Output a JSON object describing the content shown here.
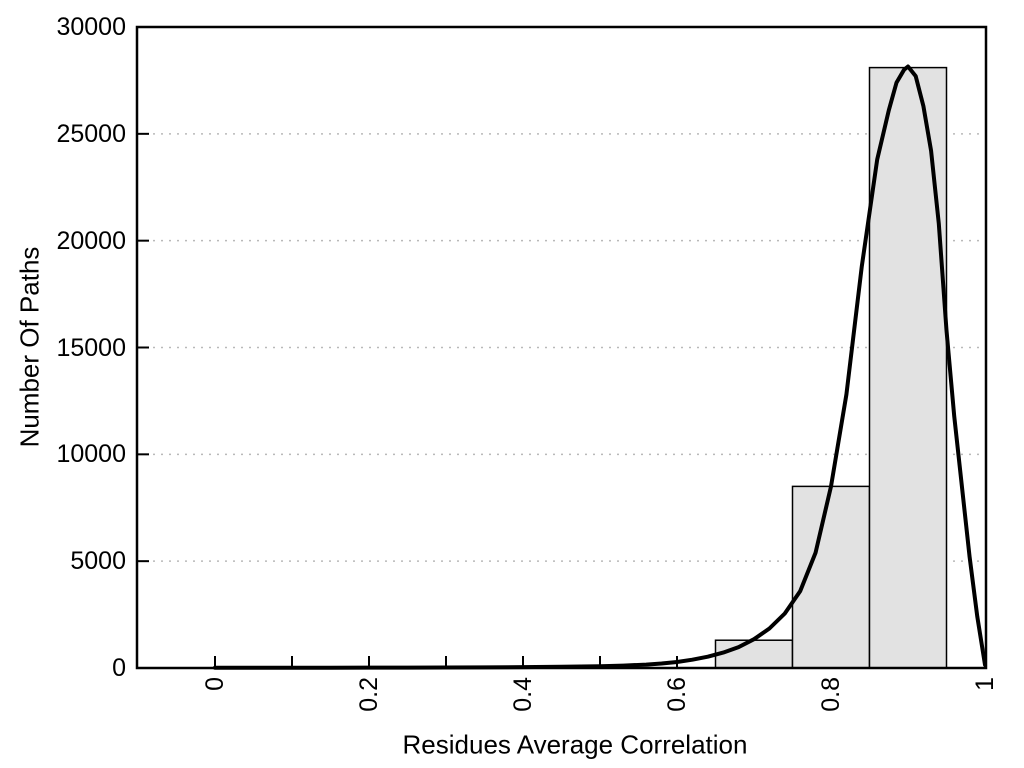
{
  "chart_data": {
    "type": "bar",
    "subtype": "histogram-with-density-curve",
    "title": "",
    "xlabel": "Residues Average Correlation",
    "ylabel": "Number Of Paths",
    "xlim": [
      -0.1,
      1.0
    ],
    "ylim": [
      0,
      30000
    ],
    "grid": "horizontal-dotted",
    "legend": "none",
    "x_ticks": [
      0,
      0.1,
      0.2,
      0.3,
      0.4,
      0.5,
      0.6,
      0.7,
      0.8,
      0.9,
      1.0
    ],
    "x_tick_labels": [
      "0",
      "",
      "0.2",
      "",
      "0.4",
      "",
      "0.6",
      "",
      "0.8",
      "",
      "1"
    ],
    "y_ticks": [
      0,
      5000,
      10000,
      15000,
      20000,
      25000,
      30000
    ],
    "y_tick_labels": [
      "0",
      "5000",
      "10000",
      "15000",
      "20000",
      "25000",
      "30000"
    ],
    "bar_fill": "#e2e2e2",
    "bars": [
      {
        "x0": 0.65,
        "x1": 0.75,
        "count": 1300
      },
      {
        "x0": 0.75,
        "x1": 0.85,
        "count": 8500
      },
      {
        "x0": 0.85,
        "x1": 0.95,
        "count": 28100
      }
    ],
    "curve": {
      "name": "density-fit",
      "color": "#000000",
      "x": [
        0.0,
        0.05,
        0.1,
        0.15,
        0.2,
        0.25,
        0.3,
        0.35,
        0.4,
        0.45,
        0.5,
        0.53,
        0.56,
        0.58,
        0.6,
        0.62,
        0.64,
        0.66,
        0.68,
        0.7,
        0.72,
        0.74,
        0.76,
        0.78,
        0.8,
        0.82,
        0.84,
        0.86,
        0.875,
        0.885,
        0.895,
        0.9,
        0.91,
        0.92,
        0.93,
        0.94,
        0.95,
        0.96,
        0.97,
        0.98,
        0.99,
        1.0
      ],
      "y": [
        15,
        15,
        15,
        15,
        18,
        20,
        25,
        30,
        40,
        55,
        80,
        110,
        160,
        210,
        280,
        390,
        530,
        720,
        980,
        1350,
        1850,
        2550,
        3600,
        5400,
        8500,
        12800,
        18800,
        23800,
        26100,
        27400,
        28000,
        28150,
        27700,
        26300,
        24200,
        20800,
        15800,
        11800,
        8500,
        5200,
        2400,
        150
      ]
    }
  }
}
